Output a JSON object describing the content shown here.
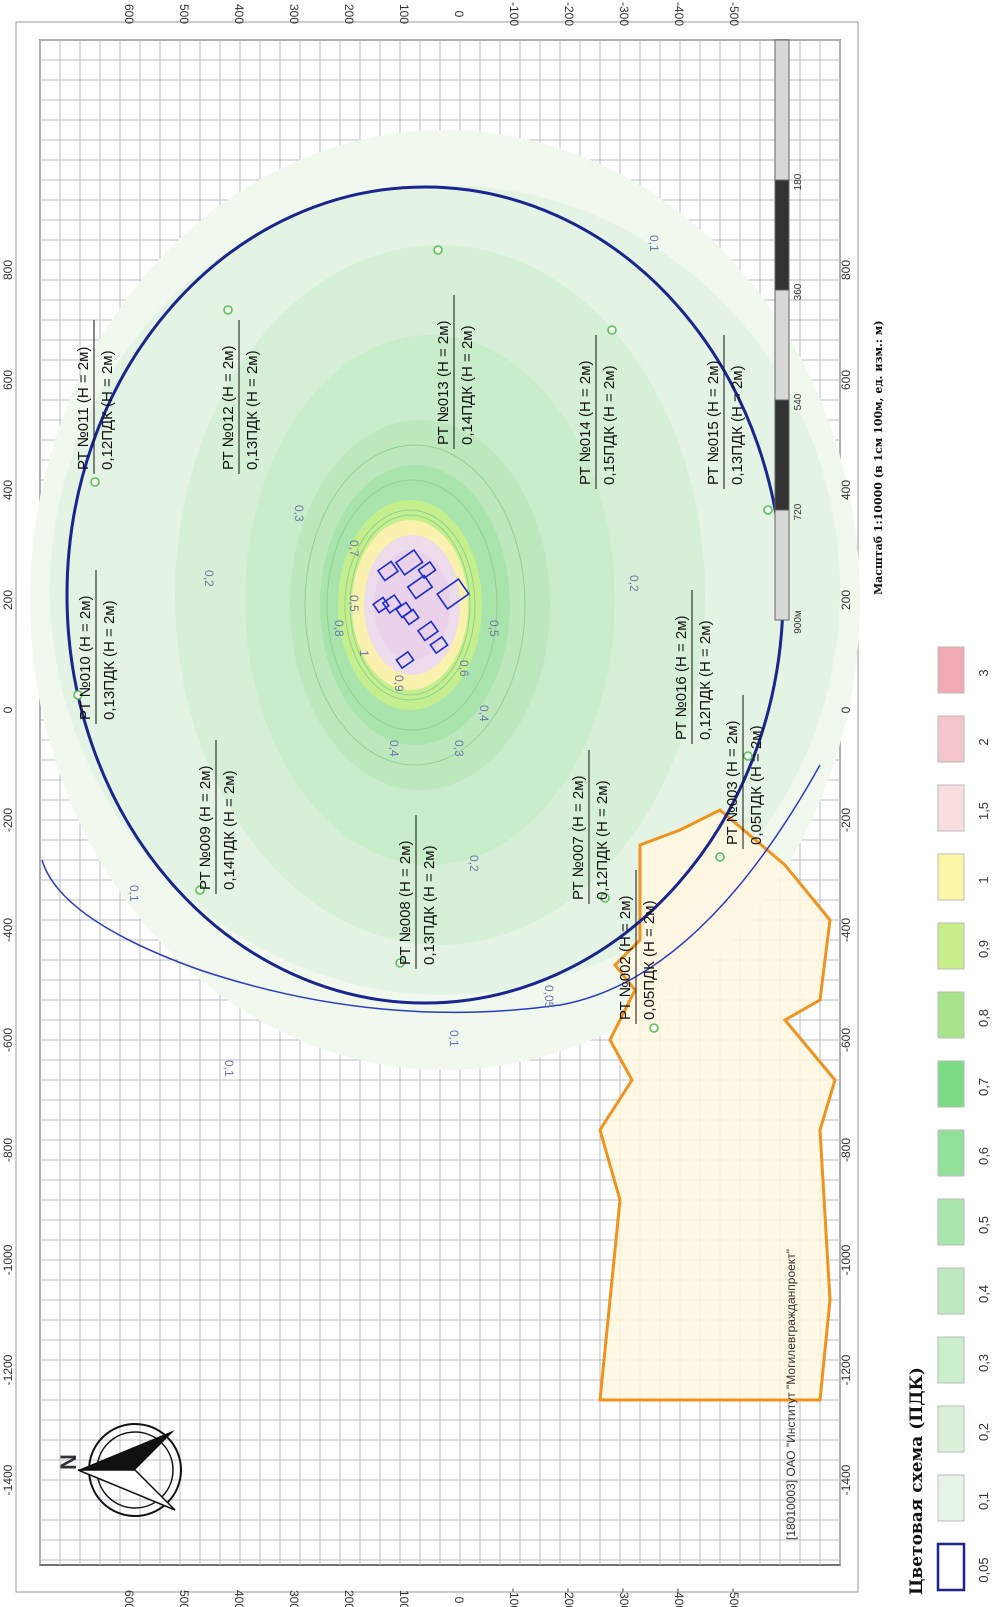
{
  "map": {
    "x_ticks": [
      "-1400",
      "-1200",
      "-1000",
      "-800",
      "-600",
      "-400",
      "-200",
      "0",
      "200",
      "400",
      "600",
      "800"
    ],
    "y_ticks": [
      "600",
      "500",
      "400",
      "300",
      "200",
      "100",
      "0",
      "-100",
      "-200",
      "-300",
      "-400",
      "-500"
    ],
    "copyright": "[18010003] ОАО \"Институт \"Могилевгражданпроект\"",
    "north": "N",
    "point_labels": [
      {
        "name": "РТ №011 (Н = 2м)",
        "value": "0,12ПДК (Н = 2м)"
      },
      {
        "name": "РТ №012 (Н = 2м)",
        "value": "0,13ПДК (Н = 2м)"
      },
      {
        "name": "РТ №013 (Н = 2м)",
        "value": "0,14ПДК (Н = 2м)"
      },
      {
        "name": "РТ №014 (Н = 2м)",
        "value": "0,15ПДК (Н = 2м)"
      },
      {
        "name": "РТ №015 (Н = 2м)",
        "value": "0,13ПДК (Н = 2м)"
      },
      {
        "name": "РТ №016 (Н = 2м)",
        "value": "0,12ПДК (Н = 2м)"
      },
      {
        "name": "РТ №007 (Н = 2м)",
        "value": "0,12ПДК (Н = 2м)"
      },
      {
        "name": "РТ №010 (Н = 2м)",
        "value": "0,13ПДК (Н = 2м)"
      },
      {
        "name": "РТ №009 (Н = 2м)",
        "value": "0,14ПДК (Н = 2м)"
      },
      {
        "name": "РТ №008 (Н = 2м)",
        "value": "0,13ПДК (Н = 2м)"
      },
      {
        "name": "РТ №002 (Н = 2м)",
        "value": "0,05ПДК (Н = 2м)"
      },
      {
        "name": "РТ №003 (Н = 2м)",
        "value": "0,05ПДК (Н = 2м)"
      }
    ],
    "iso_labels": [
      "0,05",
      "0,1",
      "0,1",
      "0,1",
      "0,1",
      "0,2",
      "0,2",
      "0,2",
      "0,3",
      "0,3",
      "0,4",
      "0,4",
      "0,5",
      "0,5",
      "0,6",
      "0,7",
      "0,8",
      "0,9",
      "1"
    ]
  },
  "scale_bar": {
    "ticks": [
      "180",
      "360",
      "540",
      "720",
      "900м"
    ],
    "caption": "Масштаб 1:10000 (в 1см 100м, ед. изм.: м)"
  },
  "legend": {
    "title": "Цветовая схема (ПДК)",
    "items": [
      {
        "label": "0,05",
        "color": "#ffffff"
      },
      {
        "label": "0,1",
        "color": "#e6f4e6"
      },
      {
        "label": "0,2",
        "color": "#d9f1d9"
      },
      {
        "label": "0,3",
        "color": "#cbeecb"
      },
      {
        "label": "0,4",
        "color": "#bdeabf"
      },
      {
        "label": "0,5",
        "color": "#a9e6ac"
      },
      {
        "label": "0,6",
        "color": "#93e199"
      },
      {
        "label": "0,7",
        "color": "#7bdc84"
      },
      {
        "label": "0,8",
        "color": "#a8e48a"
      },
      {
        "label": "0,9",
        "color": "#c8ee8a"
      },
      {
        "label": "1",
        "color": "#fbf7a8"
      },
      {
        "label": "1,5",
        "color": "#f8dede"
      },
      {
        "label": "2",
        "color": "#f4c6cb"
      },
      {
        "label": "3",
        "color": "#f0aab3"
      }
    ]
  },
  "colors": {
    "zone_circle": "#1a2590",
    "outer_arc": "#2a3ac8",
    "boundary": "#f0921e",
    "point_marker": "#59c159",
    "sources": "#1c2bd8"
  }
}
